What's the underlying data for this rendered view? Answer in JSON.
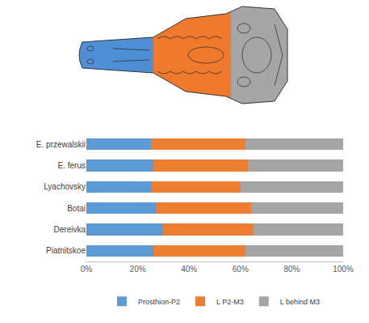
{
  "chart_data": {
    "type": "bar",
    "orientation": "horizontal",
    "stacked": true,
    "grid": false,
    "legend": "bottom",
    "data_labels": false,
    "categories": [
      "E. przewalskii",
      "E. ferus",
      "Lyachovsky",
      "Botai",
      "Dereivka",
      "Piatnitskoe"
    ],
    "series": [
      {
        "name": "Prosthion-P2",
        "color": "#5b9bd5",
        "values": [
          25,
          26,
          25,
          27,
          30,
          26
        ]
      },
      {
        "name": "L P2-M3",
        "color": "#ed7d31",
        "values": [
          37,
          37,
          35,
          37,
          35,
          36
        ]
      },
      {
        "name": "L behind M3",
        "color": "#a5a5a5",
        "values": [
          38,
          37,
          40,
          36,
          35,
          38
        ]
      }
    ],
    "xlim": [
      0,
      100
    ],
    "xticks": [
      {
        "value": 0,
        "label": "0%"
      },
      {
        "value": 20,
        "label": "20%"
      },
      {
        "value": 40,
        "label": "40%"
      },
      {
        "value": 60,
        "label": "60%"
      },
      {
        "value": 80,
        "label": "80%"
      },
      {
        "value": 100,
        "label": "100%"
      }
    ]
  }
}
